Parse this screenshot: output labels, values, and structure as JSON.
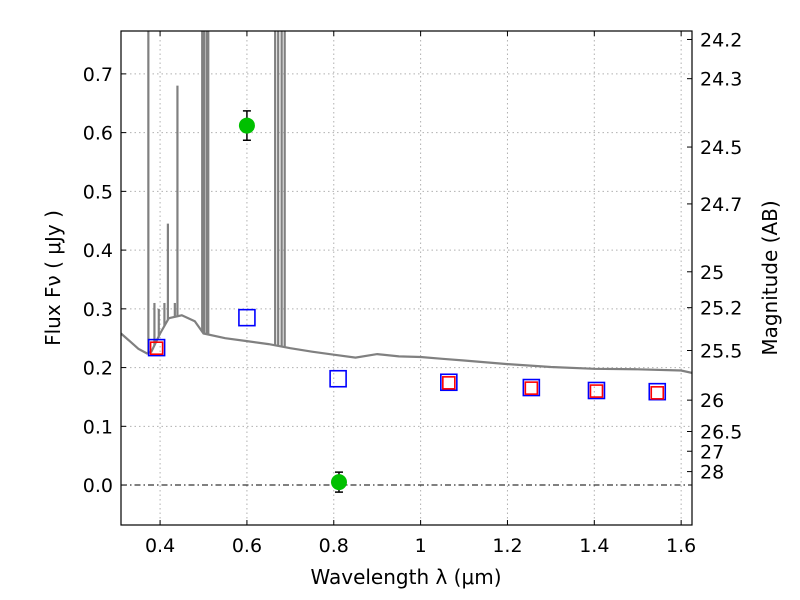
{
  "chart_data": {
    "type": "scatter",
    "title": "",
    "xlabel": "Wavelength  λ (μm)",
    "ylabel": "Flux  Fν  ( μJy )",
    "y2label": "Magnitude (AB)",
    "xlim": [
      0.31,
      1.625
    ],
    "ylim": [
      -0.068,
      0.773
    ],
    "grid": true,
    "x_ticks": [
      0.4,
      0.6,
      0.8,
      1.0,
      1.2,
      1.4,
      1.6
    ],
    "x_tick_labels": [
      "0.4",
      "0.6",
      "0.8",
      "1",
      "1.2",
      "1.4",
      "1.6"
    ],
    "y_ticks": [
      0.0,
      0.1,
      0.2,
      0.3,
      0.4,
      0.5,
      0.6,
      0.7
    ],
    "y_tick_labels": [
      "0.0",
      "0.1",
      "0.2",
      "0.3",
      "0.4",
      "0.5",
      "0.6",
      "0.7"
    ],
    "mag_ticks": [
      {
        "mag": 24.2,
        "label": "24.2"
      },
      {
        "mag": 24.3,
        "label": "24.3"
      },
      {
        "mag": 24.5,
        "label": "24.5"
      },
      {
        "mag": 24.7,
        "label": "24.7"
      },
      {
        "mag": 25.0,
        "label": "25"
      },
      {
        "mag": 25.2,
        "label": "25.2"
      },
      {
        "mag": 25.5,
        "label": "25.5"
      },
      {
        "mag": 26.0,
        "label": "26"
      },
      {
        "mag": 26.5,
        "label": "26.5"
      },
      {
        "mag": 27.0,
        "label": "27"
      },
      {
        "mag": 28.0,
        "label": "28"
      }
    ],
    "zero_line": 0.0,
    "series": [
      {
        "kind": "spectrum",
        "color": "#808080",
        "continuum": [
          [
            0.31,
            0.258
          ],
          [
            0.33,
            0.245
          ],
          [
            0.35,
            0.232
          ],
          [
            0.37,
            0.224
          ],
          [
            0.38,
            0.227
          ],
          [
            0.4,
            0.258
          ],
          [
            0.42,
            0.284
          ],
          [
            0.45,
            0.289
          ],
          [
            0.48,
            0.279
          ],
          [
            0.5,
            0.258
          ],
          [
            0.55,
            0.25
          ],
          [
            0.6,
            0.245
          ],
          [
            0.65,
            0.24
          ],
          [
            0.7,
            0.233
          ],
          [
            0.75,
            0.227
          ],
          [
            0.8,
            0.222
          ],
          [
            0.85,
            0.217
          ],
          [
            0.9,
            0.223
          ],
          [
            0.95,
            0.219
          ],
          [
            1.0,
            0.218
          ],
          [
            1.05,
            0.215
          ],
          [
            1.1,
            0.212
          ],
          [
            1.2,
            0.206
          ],
          [
            1.3,
            0.201
          ],
          [
            1.4,
            0.198
          ],
          [
            1.5,
            0.197
          ],
          [
            1.6,
            0.195
          ],
          [
            1.625,
            0.191
          ]
        ],
        "emission_lines": [
          [
            0.373,
            0.78
          ],
          [
            0.387,
            0.31
          ],
          [
            0.397,
            0.3
          ],
          [
            0.41,
            0.31
          ],
          [
            0.418,
            0.445
          ],
          [
            0.434,
            0.31
          ],
          [
            0.44,
            0.68
          ],
          [
            0.497,
            0.78
          ],
          [
            0.501,
            0.78
          ],
          [
            0.507,
            0.78
          ],
          [
            0.511,
            0.78
          ],
          [
            0.665,
            0.78
          ],
          [
            0.672,
            0.78
          ],
          [
            0.68,
            0.78
          ],
          [
            0.687,
            0.78
          ]
        ]
      },
      {
        "kind": "model-photometry",
        "color": "#0000ff",
        "marker": "open-square",
        "points": [
          [
            0.392,
            0.234
          ],
          [
            0.6,
            0.285
          ],
          [
            0.81,
            0.181
          ],
          [
            1.065,
            0.175
          ],
          [
            1.255,
            0.166
          ],
          [
            1.405,
            0.161
          ],
          [
            1.545,
            0.159
          ]
        ]
      },
      {
        "kind": "observed-photometry",
        "color": "#ff0000",
        "marker": "open-square",
        "points": [
          [
            0.392,
            0.233
          ],
          [
            1.065,
            0.174
          ],
          [
            1.255,
            0.165
          ],
          [
            1.405,
            0.16
          ],
          [
            1.545,
            0.157
          ]
        ]
      },
      {
        "kind": "detections",
        "color": "#00c000",
        "marker": "filled-circle",
        "points": [
          {
            "x": 0.6,
            "y": 0.612,
            "yerr": 0.025
          },
          {
            "x": 0.812,
            "y": 0.005,
            "yerr": 0.017
          }
        ]
      }
    ]
  }
}
